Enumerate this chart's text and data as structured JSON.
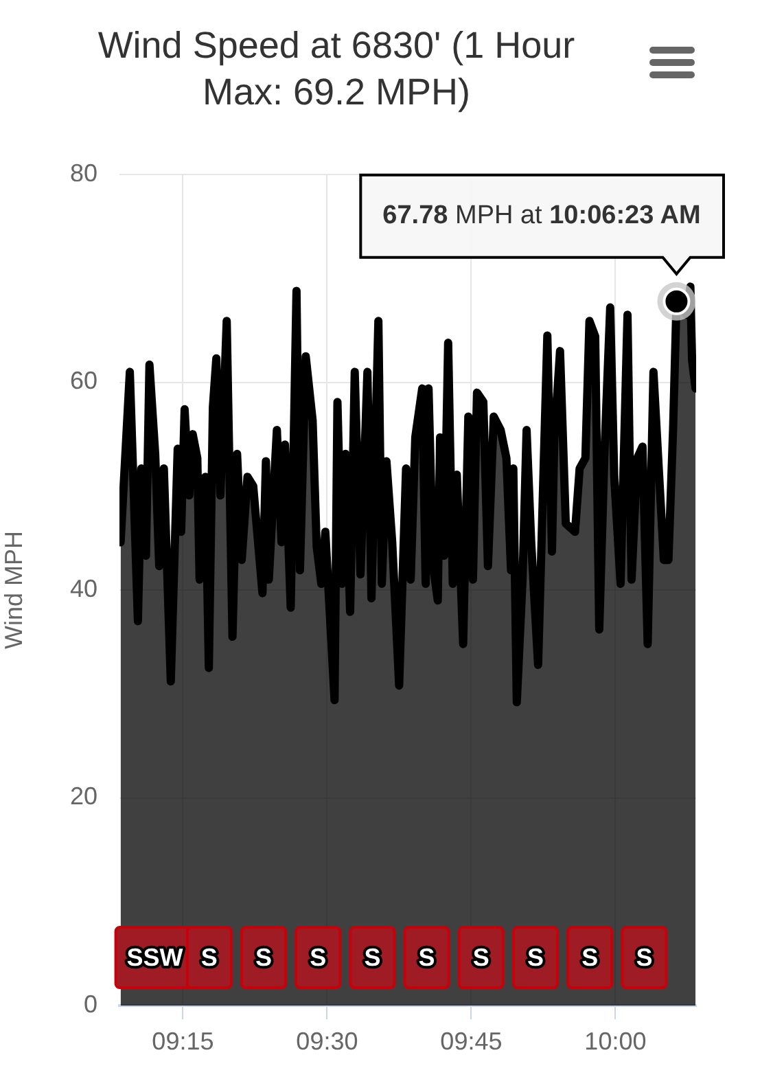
{
  "chart_data": {
    "type": "area",
    "title": "Wind Speed at 6830' (1 Hour Max: 69.2 MPH)",
    "ylabel": "Wind MPH",
    "x": [
      9.142,
      9.158,
      9.172,
      9.178,
      9.186,
      9.192,
      9.202,
      9.209,
      9.217,
      9.229,
      9.241,
      9.247,
      9.253,
      9.261,
      9.267,
      9.275,
      9.279,
      9.289,
      9.295,
      9.302,
      9.308,
      9.315,
      9.326,
      9.336,
      9.344,
      9.352,
      9.362,
      9.372,
      9.388,
      9.394,
      9.399,
      9.413,
      9.421,
      9.427,
      9.437,
      9.447,
      9.453,
      9.463,
      9.475,
      9.482,
      9.49,
      9.497,
      9.513,
      9.518,
      9.526,
      9.532,
      9.54,
      9.548,
      9.558,
      9.57,
      9.577,
      9.589,
      9.595,
      9.603,
      9.613,
      9.625,
      9.637,
      9.645,
      9.653,
      9.665,
      9.671,
      9.676,
      9.684,
      9.692,
      9.696,
      9.703,
      9.71,
      9.718,
      9.725,
      9.736,
      9.745,
      9.753,
      9.76,
      9.771,
      9.779,
      9.789,
      9.801,
      9.811,
      9.819,
      9.823,
      9.829,
      9.839,
      9.846,
      9.854,
      9.866,
      9.874,
      9.882,
      9.89,
      9.894,
      9.904,
      9.914,
      9.93,
      9.938,
      9.948,
      9.955,
      9.965,
      9.972,
      9.981,
      9.991,
      9.998,
      10.009,
      10.021,
      10.028,
      10.038,
      10.047,
      10.056,
      10.066,
      10.076,
      10.084,
      10.092,
      10.1,
      10.106,
      10.123,
      10.13,
      10.133,
      10.139
    ],
    "series": [
      {
        "color": "#000000",
        "values": [
          44.6,
          61,
          37,
          51.7,
          43.3,
          61.7,
          53.1,
          42.3,
          51.7,
          31.2,
          53.6,
          45.6,
          57.4,
          49.1,
          55,
          52.7,
          41,
          50.9,
          32.5,
          57.6,
          62.3,
          49.1,
          65.9,
          35.5,
          53.1,
          42.9,
          50.9,
          50,
          39.7,
          52.4,
          41,
          55.4,
          44.6,
          54,
          38.3,
          68.8,
          41.9,
          62.5,
          56.3,
          44.2,
          40.6,
          45.6,
          29.4,
          58.1,
          40.6,
          53.1,
          37.9,
          61,
          41.5,
          61,
          39.2,
          65.9,
          40.6,
          52.4,
          44.6,
          30.8,
          51.7,
          41,
          54.7,
          59.4,
          40.6,
          59.4,
          42.3,
          39,
          54.7,
          43.3,
          63.8,
          40.6,
          51.1,
          34.8,
          56.7,
          41,
          59,
          58.1,
          42.3,
          56.7,
          55.4,
          52.7,
          41.9,
          51.7,
          29.2,
          41,
          55.4,
          44.6,
          32.8,
          48.7,
          64.5,
          43.7,
          54.4,
          63,
          46.4,
          45.6,
          51.7,
          52.7,
          65.9,
          64.4,
          36.2,
          53.1,
          67.2,
          50.9,
          40.6,
          66.5,
          41,
          52.7,
          53.8,
          34.8,
          61,
          50.9,
          42.9,
          42.9,
          55.4,
          67.78,
          66.5,
          69.2,
          62.1,
          59.4
        ]
      }
    ],
    "xlim": [
      9.14,
      10.14
    ],
    "xticks": [
      {
        "value": 9.25,
        "label": "09:15"
      },
      {
        "value": 9.5,
        "label": "09:30"
      },
      {
        "value": 9.75,
        "label": "09:45"
      },
      {
        "value": 10,
        "label": "10:00"
      }
    ],
    "ylim": [
      0,
      80
    ],
    "yticks": [
      0,
      20,
      40,
      60,
      80
    ],
    "grid": true,
    "legend": false,
    "marker": "none",
    "line_style": "solid",
    "annotations": [
      {
        "text": "67.78 MPH at 10:06:23 AM",
        "x": 10.106,
        "y": 67.78
      },
      "SSW",
      "S",
      "S",
      "S",
      "S",
      "S",
      "S",
      "S",
      "S",
      "S"
    ]
  }
}
